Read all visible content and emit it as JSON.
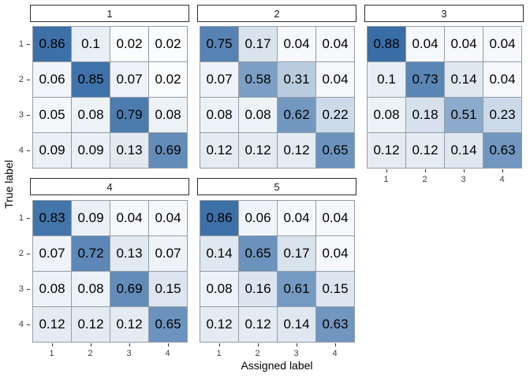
{
  "figure": {
    "background": "#ffffff"
  },
  "axes": {
    "x_title": "Assigned label",
    "y_title": "True label",
    "x_tick_labels": [
      "1",
      "2",
      "3",
      "4"
    ],
    "y_tick_labels": [
      "1",
      "2",
      "3",
      "4"
    ]
  },
  "colors": {
    "scale_low": "#ffffff",
    "scale_high": "#1d5999",
    "cell_border": "#939da8",
    "strip_border": "#2e2e2e",
    "strip_fill": "#ffffff",
    "tick_mark": "#333333",
    "tick_label": "#404040",
    "value_text": "#000000"
  },
  "chart_data": {
    "type": "heatmap",
    "title": "",
    "x_label": "Assigned label",
    "y_label": "True label",
    "rows": [
      "1",
      "2",
      "3",
      "4"
    ],
    "cols": [
      "1",
      "2",
      "3",
      "4"
    ],
    "color_scale": {
      "low": "#ffffff",
      "high": "#1d5999",
      "domain": [
        0,
        1
      ]
    },
    "legend": "none",
    "facets": [
      {
        "label": "1",
        "matrix": [
          [
            0.86,
            0.1,
            0.02,
            0.02
          ],
          [
            0.06,
            0.85,
            0.07,
            0.02
          ],
          [
            0.05,
            0.08,
            0.79,
            0.08
          ],
          [
            0.09,
            0.09,
            0.13,
            0.69
          ]
        ]
      },
      {
        "label": "2",
        "matrix": [
          [
            0.75,
            0.17,
            0.04,
            0.04
          ],
          [
            0.07,
            0.58,
            0.31,
            0.04
          ],
          [
            0.08,
            0.08,
            0.62,
            0.22
          ],
          [
            0.12,
            0.12,
            0.12,
            0.65
          ]
        ]
      },
      {
        "label": "3",
        "matrix": [
          [
            0.88,
            0.04,
            0.04,
            0.04
          ],
          [
            0.1,
            0.73,
            0.14,
            0.04
          ],
          [
            0.08,
            0.18,
            0.51,
            0.23
          ],
          [
            0.12,
            0.12,
            0.14,
            0.63
          ]
        ]
      },
      {
        "label": "4",
        "matrix": [
          [
            0.83,
            0.09,
            0.04,
            0.04
          ],
          [
            0.07,
            0.72,
            0.13,
            0.07
          ],
          [
            0.08,
            0.08,
            0.69,
            0.15
          ],
          [
            0.12,
            0.12,
            0.12,
            0.65
          ]
        ]
      },
      {
        "label": "5",
        "matrix": [
          [
            0.86,
            0.06,
            0.04,
            0.04
          ],
          [
            0.14,
            0.65,
            0.17,
            0.04
          ],
          [
            0.08,
            0.16,
            0.61,
            0.15
          ],
          [
            0.12,
            0.12,
            0.14,
            0.63
          ]
        ]
      }
    ]
  }
}
